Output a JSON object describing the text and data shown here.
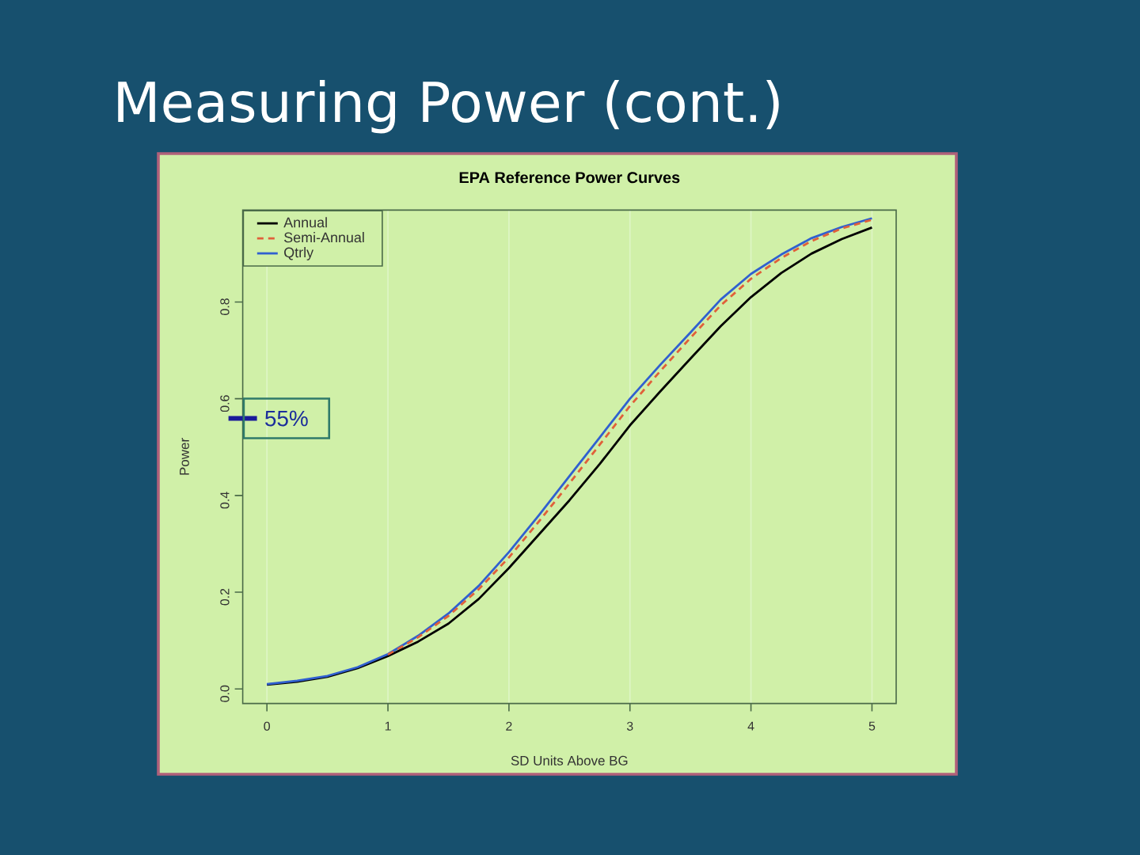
{
  "chart_data": {
    "type": "line",
    "title": "Measuring Power (cont.)",
    "subtitle": "EPA Reference Power Curves",
    "xlabel": "SD Units Above BG",
    "ylabel": "Power",
    "x": [
      0,
      0.25,
      0.5,
      0.75,
      1,
      1.25,
      1.5,
      1.75,
      2,
      2.25,
      2.5,
      2.75,
      3,
      3.25,
      3.5,
      3.75,
      4,
      4.25,
      4.5,
      4.75,
      5
    ],
    "series": [
      {
        "name": "Annual",
        "color": "#000000",
        "line_style": "solid",
        "values": [
          0.009,
          0.015,
          0.025,
          0.043,
          0.068,
          0.098,
          0.135,
          0.186,
          0.25,
          0.32,
          0.39,
          0.465,
          0.545,
          0.615,
          0.683,
          0.75,
          0.81,
          0.86,
          0.9,
          0.93,
          0.954
        ]
      },
      {
        "name": "Semi-Annual",
        "color": "#e0603a",
        "line_style": "dashed",
        "values": [
          null,
          null,
          null,
          null,
          0.071,
          0.107,
          0.151,
          0.206,
          0.272,
          0.347,
          0.425,
          0.505,
          0.585,
          0.657,
          0.726,
          0.793,
          0.848,
          0.891,
          0.926,
          0.952,
          0.97
        ]
      },
      {
        "name": "Qtrly",
        "color": "#3060d0",
        "line_style": "solid",
        "values": [
          0.01,
          0.017,
          0.027,
          0.045,
          0.072,
          0.11,
          0.156,
          0.213,
          0.283,
          0.36,
          0.44,
          0.52,
          0.6,
          0.67,
          0.737,
          0.805,
          0.858,
          0.898,
          0.932,
          0.955,
          0.973
        ]
      }
    ],
    "xlim": [
      -0.2,
      5.2
    ],
    "ylim": [
      -0.03,
      0.99
    ],
    "xticks": [
      0,
      1,
      2,
      3,
      4,
      5
    ],
    "yticks": [
      {
        "value": 0,
        "label": "0.0"
      },
      0.2,
      0.4,
      0.6,
      0.8
    ],
    "grid": "x",
    "legend": "top left",
    "annotations": [
      "55%"
    ]
  }
}
